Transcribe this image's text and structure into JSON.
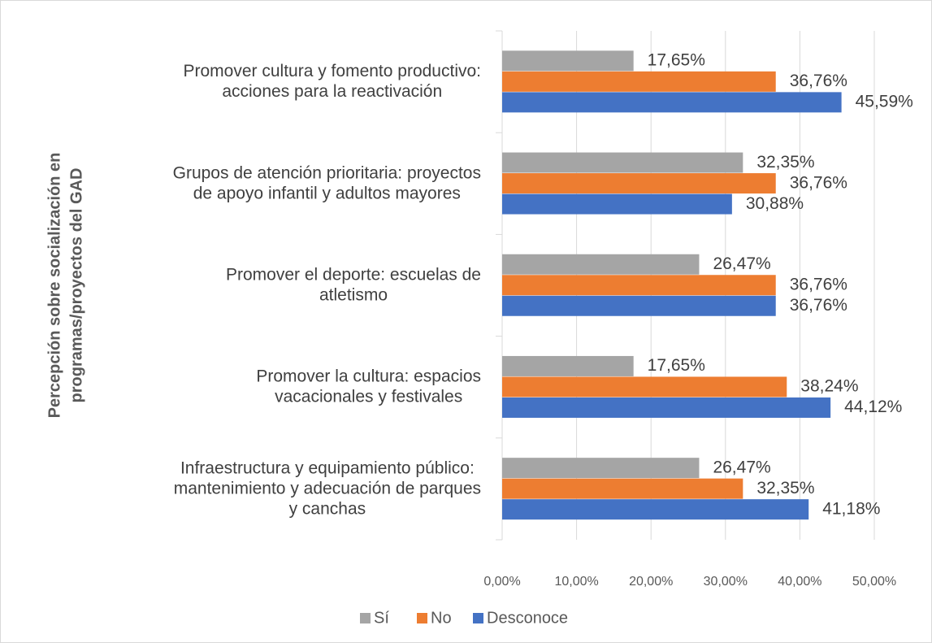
{
  "chart_data": {
    "type": "bar",
    "orientation": "horizontal",
    "y_label": "Percepción sobre socialización en\nprogramas/proyectos del GAD",
    "categories": [
      "Promover cultura y fomento productivo:\nacciones para la reactivación",
      "Grupos de atención prioritaria: proyectos\nde apoyo infantil y adultos mayores",
      "Promover el deporte: escuelas de\natletismo",
      "Promover la cultura: espacios\nvacacionales y festivales",
      "Infraestructura y equipamiento público:\nmantenimiento y adecuación de parques\ny canchas"
    ],
    "series": [
      {
        "name": "Sí",
        "color": "#a5a5a5",
        "values": [
          17.65,
          32.35,
          26.47,
          17.65,
          26.47
        ],
        "value_labels": [
          "17,65%",
          "32,35%",
          "26,47%",
          "17,65%",
          "26,47%"
        ]
      },
      {
        "name": "No",
        "color": "#ed7d31",
        "values": [
          36.76,
          36.76,
          36.76,
          38.24,
          32.35
        ],
        "value_labels": [
          "36,76%",
          "36,76%",
          "36,76%",
          "38,24%",
          "32,35%"
        ]
      },
      {
        "name": "Desconoce",
        "color": "#4472c4",
        "values": [
          45.59,
          30.88,
          36.76,
          44.12,
          41.18
        ],
        "value_labels": [
          "45,59%",
          "30,88%",
          "36,76%",
          "44,12%",
          "41,18%"
        ]
      }
    ],
    "xlim": [
      0,
      50
    ],
    "xticks": [
      {
        "value": 0,
        "label": "0,00%"
      },
      {
        "value": 10,
        "label": "10,00%"
      },
      {
        "value": 20,
        "label": "20,00%"
      },
      {
        "value": 30,
        "label": "30,00%"
      },
      {
        "value": 40,
        "label": "40,00%"
      },
      {
        "value": 50,
        "label": "50,00%"
      }
    ],
    "grid": true,
    "legend": "bottom"
  }
}
